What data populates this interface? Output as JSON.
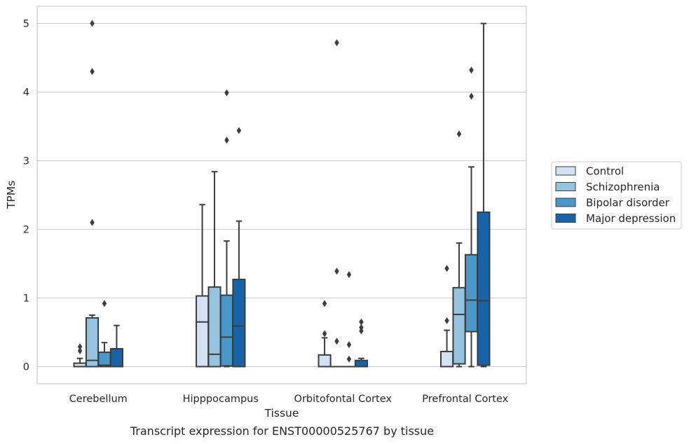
{
  "caption": "Transcript expression for ENST00000525767 by tissue",
  "chart_data": {
    "type": "box",
    "title": "",
    "xlabel": "Tissue",
    "ylabel": "TPMs",
    "ylim": [
      -0.25,
      5.25
    ],
    "yticks": [
      0,
      1,
      2,
      3,
      4,
      5
    ],
    "grid": "horizontal",
    "legend_position": "right",
    "categories": [
      "Cerebellum",
      "Hipppocampus",
      "Orbitofontal Cortex",
      "Prefrontal Cortex"
    ],
    "series": [
      {
        "name": "Control",
        "color": "#d0e1f2",
        "boxes": [
          {
            "whislo": 0,
            "q1": 0,
            "med": 0,
            "q3": 0.05,
            "whishi": 0.12,
            "fliers": [
              0.23,
              0.29
            ]
          },
          {
            "whislo": 0,
            "q1": 0,
            "med": 0.65,
            "q3": 1.03,
            "whishi": 2.36,
            "fliers": []
          },
          {
            "whislo": 0,
            "q1": 0,
            "med": 0,
            "q3": 0.17,
            "whishi": 0.42,
            "fliers": [
              0.48,
              0.92
            ]
          },
          {
            "whislo": 0,
            "q1": 0,
            "med": 0,
            "q3": 0.22,
            "whishi": 0.53,
            "fliers": [
              0.67,
              1.43
            ]
          }
        ]
      },
      {
        "name": "Schizophrenia",
        "color": "#94c4df",
        "boxes": [
          {
            "whislo": 0,
            "q1": 0,
            "med": 0.09,
            "q3": 0.71,
            "whishi": 0.75,
            "fliers": [
              2.1,
              4.3,
              5.0
            ]
          },
          {
            "whislo": 0,
            "q1": 0,
            "med": 0.18,
            "q3": 1.16,
            "whishi": 2.84,
            "fliers": []
          },
          {
            "whislo": 0,
            "q1": 0,
            "med": 0,
            "q3": 0,
            "whishi": 0,
            "fliers": [
              0.37,
              1.39,
              4.72
            ]
          },
          {
            "whislo": 0,
            "q1": 0.04,
            "med": 0.76,
            "q3": 1.15,
            "whishi": 1.8,
            "fliers": [
              3.39
            ]
          }
        ]
      },
      {
        "name": "Bipolar disorder",
        "color": "#4a98c9",
        "boxes": [
          {
            "whislo": 0,
            "q1": 0,
            "med": 0.02,
            "q3": 0.21,
            "whishi": 0.35,
            "fliers": [
              0.92
            ]
          },
          {
            "whislo": 0,
            "q1": 0.01,
            "med": 0.43,
            "q3": 1.04,
            "whishi": 1.83,
            "fliers": [
              3.3,
              3.99
            ]
          },
          {
            "whislo": 0,
            "q1": 0,
            "med": 0,
            "q3": 0,
            "whishi": 0,
            "fliers": [
              0.11,
              0.32,
              1.34
            ]
          },
          {
            "whislo": 0,
            "q1": 0.51,
            "med": 0.97,
            "q3": 1.63,
            "whishi": 2.91,
            "fliers": [
              3.94,
              4.32
            ]
          }
        ]
      },
      {
        "name": "Major depression",
        "color": "#1764ab",
        "boxes": [
          {
            "whislo": 0,
            "q1": 0,
            "med": 0,
            "q3": 0.26,
            "whishi": 0.6,
            "fliers": []
          },
          {
            "whislo": 0,
            "q1": 0,
            "med": 0.59,
            "q3": 1.27,
            "whishi": 2.12,
            "fliers": [
              3.44
            ]
          },
          {
            "whislo": 0,
            "q1": 0,
            "med": 0,
            "q3": 0.09,
            "whishi": 0.12,
            "fliers": [
              0.52,
              0.57,
              0.65
            ]
          },
          {
            "whislo": 0,
            "q1": 0.02,
            "med": 0.96,
            "q3": 2.25,
            "whishi": 5.0,
            "fliers": []
          }
        ]
      }
    ]
  }
}
